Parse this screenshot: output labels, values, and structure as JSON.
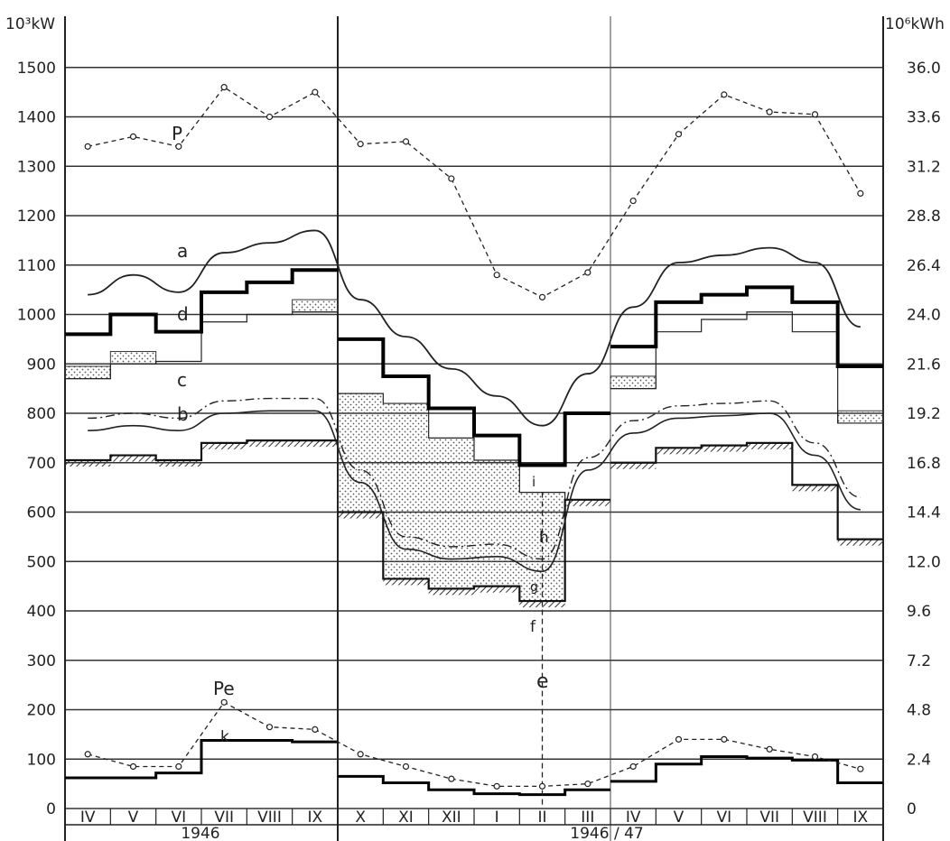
{
  "chart_data": {
    "type": "line",
    "left_axis": {
      "unit": "10³kW",
      "min": 0,
      "max": 1600,
      "ticks": [
        0,
        100,
        200,
        300,
        400,
        500,
        600,
        700,
        800,
        900,
        1000,
        1100,
        1200,
        1300,
        1400,
        1500
      ]
    },
    "right_axis": {
      "unit": "10⁶kWh",
      "ticks": [
        "0",
        "2.4",
        "4.8",
        "7.2",
        "9.6",
        "12.0",
        "14.4",
        "16.8",
        "19.2",
        "21.6",
        "24.0",
        "26.4",
        "28.8",
        "31.2",
        "33.6",
        "36.0"
      ]
    },
    "grid": true,
    "months": [
      "IV",
      "V",
      "VI",
      "VII",
      "VIII",
      "IX",
      "X",
      "XI",
      "XII",
      "I",
      "II",
      "III",
      "IV",
      "V",
      "VI",
      "VII",
      "VIII",
      "IX"
    ],
    "year_labels": [
      "1946",
      "1946 / 47"
    ],
    "curve_labels": {
      "P": "P",
      "a": "a",
      "b": "b",
      "c": "c",
      "d": "d",
      "e": "e",
      "f": "f",
      "g": "g",
      "h": "h",
      "i": "i",
      "Pe": "Pe",
      "k": "k"
    },
    "series": [
      {
        "name": "P",
        "style": "dashed-points",
        "values": [
          1340,
          1360,
          1340,
          1460,
          1400,
          1450,
          1345,
          1350,
          1275,
          1080,
          1035,
          1085,
          1230,
          1365,
          1445,
          1410,
          1405,
          1245
        ]
      },
      {
        "name": "d",
        "style": "thick-step",
        "values": [
          960,
          1000,
          965,
          1045,
          1065,
          1090,
          950,
          875,
          810,
          755,
          695,
          800,
          935,
          1025,
          1040,
          1055,
          1025,
          895
        ]
      },
      {
        "name": "thin-step",
        "style": "thin-step",
        "values": [
          870,
          900,
          905,
          985,
          1000,
          1005,
          840,
          820,
          750,
          705,
          640,
          625,
          850,
          965,
          990,
          1005,
          965,
          780
        ]
      },
      {
        "name": "b",
        "style": "step-base",
        "values": [
          705,
          715,
          705,
          740,
          745,
          745,
          600,
          465,
          445,
          450,
          420,
          625,
          700,
          730,
          735,
          740,
          655,
          545
        ]
      },
      {
        "name": "Pe",
        "style": "dashed-points",
        "values": [
          110,
          85,
          85,
          215,
          165,
          160,
          110,
          85,
          60,
          45,
          45,
          50,
          85,
          140,
          140,
          120,
          105,
          80
        ]
      },
      {
        "name": "k",
        "style": "thick-step",
        "values": [
          62,
          62,
          72,
          138,
          138,
          135,
          65,
          52,
          38,
          30,
          28,
          38,
          55,
          90,
          105,
          102,
          98,
          52
        ]
      }
    ]
  }
}
